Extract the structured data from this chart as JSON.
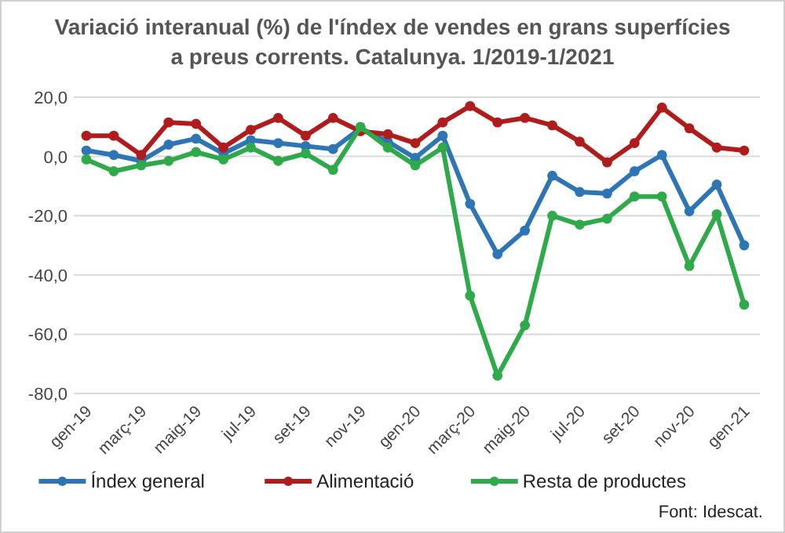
{
  "chart_data": {
    "type": "line",
    "title": "Variació interanual (%) de l'índex de vendes en grans superfícies a preus corrents. Catalunya.  1/2019-1/2021",
    "categories": [
      "gen-19",
      null,
      "març-19",
      null,
      "maig-19",
      null,
      "jul-19",
      null,
      "set-19",
      null,
      "nov-19",
      null,
      "gen-20",
      null,
      "març-20",
      null,
      "maig-20",
      null,
      "jul-20",
      null,
      "set-20",
      null,
      "nov-20",
      null,
      "gen-21"
    ],
    "series": [
      {
        "name": "Índex general",
        "color": "#2e75b6",
        "values": [
          2,
          0.5,
          -1.5,
          4,
          6,
          1,
          5.5,
          4.5,
          3.5,
          2.5,
          9.5,
          5,
          -0.5,
          7,
          -16,
          -33,
          -25,
          -6.5,
          -12,
          -12.5,
          -5,
          0.5,
          -18.5,
          -9.5,
          -30
        ]
      },
      {
        "name": "Alimentació",
        "color": "#b01c1c",
        "values": [
          7,
          7,
          0.5,
          11.5,
          11,
          3,
          9,
          13,
          7,
          13,
          8.5,
          7.5,
          4.5,
          11.5,
          17,
          11.5,
          13,
          10.5,
          5,
          -2,
          4.5,
          16.5,
          9.5,
          3,
          2
        ]
      },
      {
        "name": "Resta de productes",
        "color": "#2eaa4a",
        "values": [
          -1,
          -5,
          -3,
          -1.5,
          1.5,
          -1,
          3,
          -1.5,
          1,
          -4.5,
          10,
          3,
          -3,
          3,
          -47,
          -74,
          -57,
          -20,
          -23,
          -21,
          -13.5,
          -13.5,
          -37,
          -19.5,
          -50
        ]
      }
    ],
    "ylim": [
      -80,
      20
    ],
    "yticks": [
      {
        "value": -80,
        "label": "-80,0"
      },
      {
        "value": -60,
        "label": "-60,0"
      },
      {
        "value": -40,
        "label": "-40,0"
      },
      {
        "value": -20,
        "label": "-20,0"
      },
      {
        "value": 0,
        "label": "0,0"
      },
      {
        "value": 20,
        "label": "20,0"
      }
    ],
    "grid": "y",
    "legend": "bottom",
    "marker": "circle",
    "line_style": "solid",
    "annotations": [
      "Font: Idescat."
    ]
  }
}
